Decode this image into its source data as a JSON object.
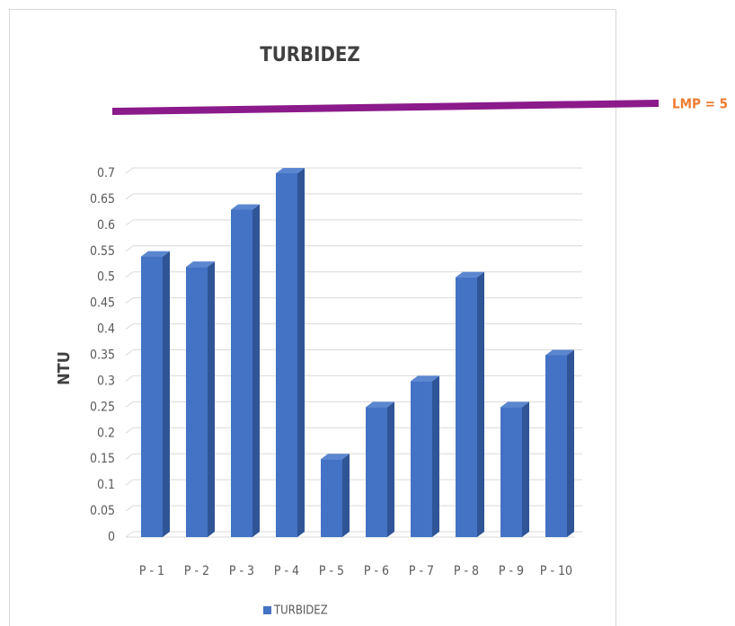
{
  "chart_data": {
    "type": "bar",
    "title": "TURBIDEZ",
    "y_label": "NTU",
    "annotation": "LMP = 5",
    "categories": [
      "P - 1",
      "P - 2",
      "P - 3",
      "P - 4",
      "P - 5",
      "P - 6",
      "P - 7",
      "P - 8",
      "P - 9",
      "P - 10"
    ],
    "series": [
      {
        "name": "TURBIDEZ",
        "color": "#4472c4",
        "values": [
          0.54,
          0.52,
          0.63,
          0.7,
          0.15,
          0.25,
          0.3,
          0.5,
          0.25,
          0.35
        ]
      }
    ],
    "ylim": [
      0,
      0.7
    ],
    "yticks": [
      0,
      0.05,
      0.1,
      0.15,
      0.2,
      0.25,
      0.3,
      0.35,
      0.4,
      0.45,
      0.5,
      0.55,
      0.6,
      0.65,
      0.7
    ],
    "grid": true,
    "legend": "bottom"
  }
}
